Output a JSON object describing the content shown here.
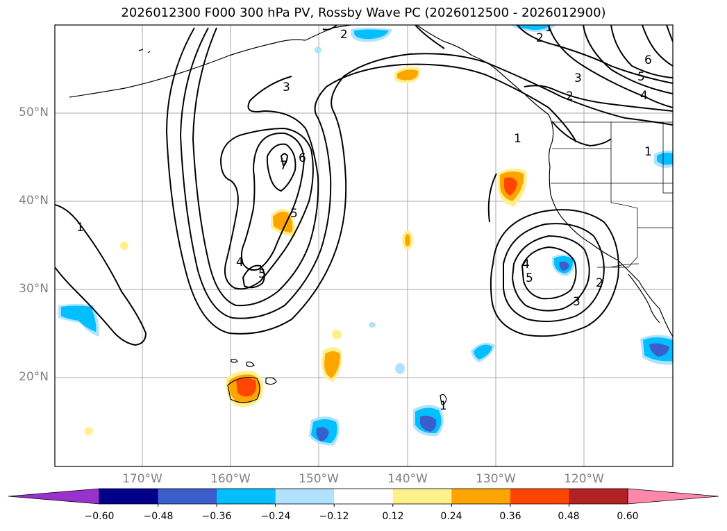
{
  "title": "2026012300 F000 300 hPa PV, Rossby Wave PC (2026012500 - 2026012900)",
  "lat_labels": [
    "50°N",
    "40°N",
    "30°N",
    "20°N"
  ],
  "lon_labels": [
    "170°W",
    "160°W",
    "150°W",
    "140°W",
    "130°W",
    "120°W"
  ],
  "colorbar": {
    "ticks": [
      "−0.60",
      "−0.48",
      "−0.36",
      "−0.24",
      "−0.12",
      "0.12",
      "0.24",
      "0.36",
      "0.48",
      "0.60"
    ],
    "colors": [
      "#9932cc",
      "#00008b",
      "#3a5fcd",
      "#00bfff",
      "#b0e2ff",
      "#ffffff",
      "#fff08c",
      "#ffa500",
      "#ff4500",
      "#b22222",
      "#ff88aa"
    ]
  },
  "contour_labels": [
    "1",
    "2",
    "3",
    "4",
    "5",
    "6",
    "7"
  ]
}
